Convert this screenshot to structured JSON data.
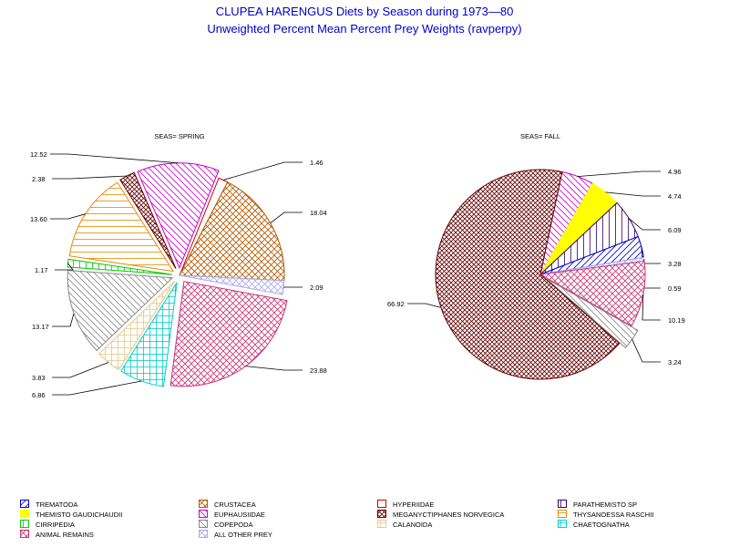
{
  "title": "CLUPEA HARENGUS Diets by Season during 1973—80",
  "subtitle": "Unweighted Percent Mean Percent Prey  Weights (ravperpy)",
  "chart_data": [
    {
      "type": "pie",
      "title": "SEAS= SPRING",
      "slices": [
        {
          "name": "HYPERIIDAE",
          "value": 1.46,
          "label": "1.46",
          "color": "#cc0000"
        },
        {
          "name": "CRUSTACEA",
          "value": 18.04,
          "label": "18.04",
          "color": "#b35900"
        },
        {
          "name": "ALL OTHER PREY",
          "value": 2.09,
          "label": "2.09",
          "color": "#aaaaee"
        },
        {
          "name": "ANIMAL REMAINS",
          "value": 23.88,
          "label": "23.88",
          "color": "#cc3377"
        },
        {
          "name": "CHAETOGNATHA",
          "value": 6.86,
          "label": "6.86",
          "color": "#00cccc"
        },
        {
          "name": "CALANOIDA",
          "value": 3.83,
          "label": "3.83",
          "color": "#e6c88c"
        },
        {
          "name": "COPEPODA",
          "value": 13.17,
          "label": "13.17",
          "color": "#888888"
        },
        {
          "name": "CIRRIPEDIA",
          "value": 1.17,
          "label": "1.17",
          "color": "#00cc00"
        },
        {
          "name": "THYSANOESSA RASCHII",
          "value": 13.6,
          "label": "13.60",
          "color": "#e68a00"
        },
        {
          "name": "MEGANYCTIPHANES NORVEGICA",
          "value": 2.38,
          "label": "2.38",
          "color": "#660000"
        },
        {
          "name": "EUPHAUSIIDAE",
          "value": 12.52,
          "label": "12.52",
          "color": "#cc00cc"
        }
      ]
    },
    {
      "type": "pie",
      "title": "SEAS= FALL",
      "slices": [
        {
          "name": "EUPHAUSIIDAE",
          "value": 4.96,
          "label": "4.96",
          "color": "#cc00cc"
        },
        {
          "name": "THEMISTO GAUDICHAUDII",
          "value": 4.74,
          "label": "4.74",
          "color": "#ffff00"
        },
        {
          "name": "PARATHEMISTO SP",
          "value": 6.09,
          "label": "6.09",
          "color": "#330066"
        },
        {
          "name": "TREMATODA",
          "value": 3.28,
          "label": "3.28",
          "color": "#0000cc"
        },
        {
          "name": "ALL OTHER PREY",
          "value": 0.59,
          "label": "0.59",
          "color": "#aaaaee"
        },
        {
          "name": "ANIMAL REMAINS",
          "value": 10.19,
          "label": "10.19",
          "color": "#cc3377"
        },
        {
          "name": "COPEPODA",
          "value": 3.24,
          "label": "3.24",
          "color": "#888888"
        },
        {
          "name": "MEGANYCTIPHANES NORVEGICA",
          "value": 66.92,
          "label": "66.92",
          "color": "#660000"
        }
      ]
    }
  ],
  "legend": [
    {
      "name": "TREMATODA",
      "color": "#0000cc",
      "pattern": "diag-r"
    },
    {
      "name": "CRUSTACEA",
      "color": "#b35900",
      "pattern": "cross-x"
    },
    {
      "name": "HYPERIIDAE",
      "color": "#cc0000",
      "pattern": "empty"
    },
    {
      "name": "PARATHEMISTO SP",
      "color": "#330066",
      "pattern": "vert"
    },
    {
      "name": "THEMISTO GAUDICHAUDII",
      "color": "#ffff00",
      "pattern": "solid"
    },
    {
      "name": "EUPHAUSIIDAE",
      "color": "#cc00cc",
      "pattern": "diag-l"
    },
    {
      "name": "MEGANYCTIPHANES NORVEGICA",
      "color": "#660000",
      "pattern": "cross-x-dense"
    },
    {
      "name": "THYSANOESSA RASCHII",
      "color": "#e68a00",
      "pattern": "horiz"
    },
    {
      "name": "CIRRIPEDIA",
      "color": "#00cc00",
      "pattern": "vert"
    },
    {
      "name": "COPEPODA",
      "color": "#888888",
      "pattern": "diag-l"
    },
    {
      "name": "CALANOIDA",
      "color": "#e6c88c",
      "pattern": "cross-hv"
    },
    {
      "name": "CHAETOGNATHA",
      "color": "#00cccc",
      "pattern": "cross-hv"
    },
    {
      "name": "ANIMAL REMAINS",
      "color": "#cc3377",
      "pattern": "cross-x"
    },
    {
      "name": "ALL OTHER PREY",
      "color": "#aaaaee",
      "pattern": "cross-x"
    }
  ]
}
